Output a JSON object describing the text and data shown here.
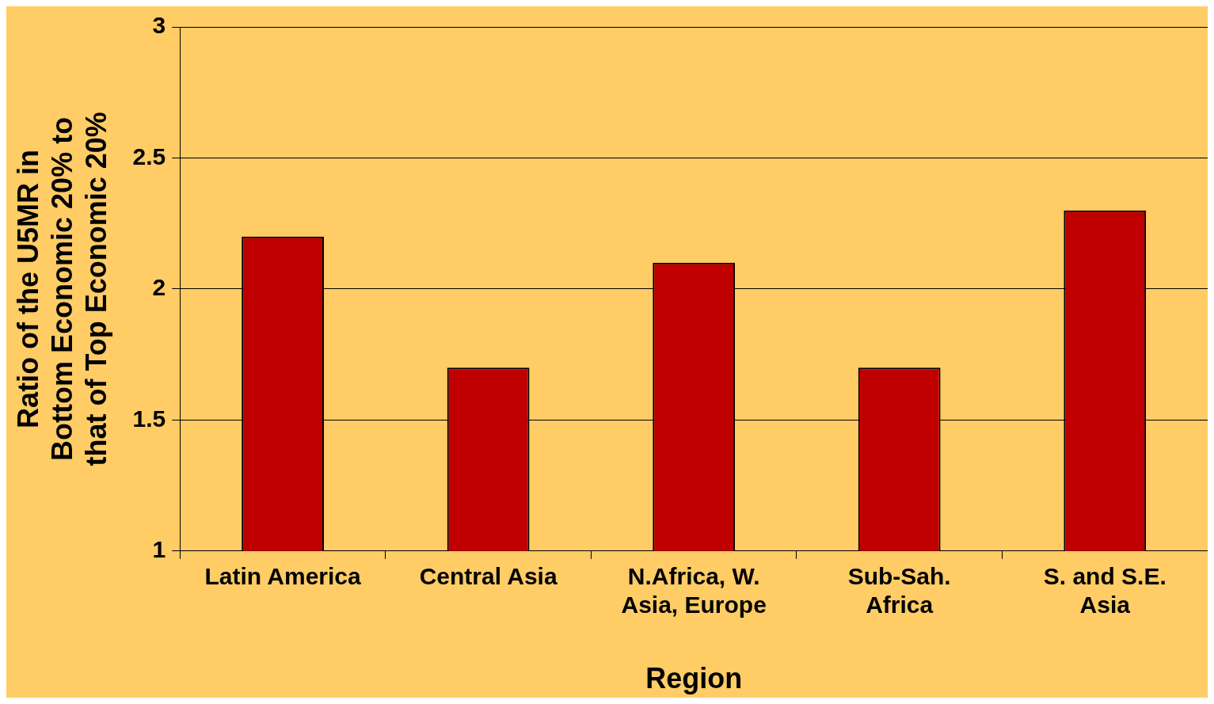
{
  "chart_data": {
    "type": "bar",
    "xlabel": "Region",
    "ylabel": "Ratio of the U5MR in Bottom Economic 20% to that of Top Economic 20%",
    "categories": [
      "Latin America",
      "Central Asia",
      "N.Africa, W. Asia, Europe",
      "Sub-Sah. Africa",
      "S. and S.E. Asia"
    ],
    "values": [
      2.2,
      1.7,
      2.1,
      1.7,
      2.3
    ],
    "color": "#c00000",
    "ylim": [
      1,
      3
    ],
    "yticks": [
      1,
      1.5,
      2,
      2.5,
      3
    ],
    "grid": "y",
    "legend": false
  }
}
